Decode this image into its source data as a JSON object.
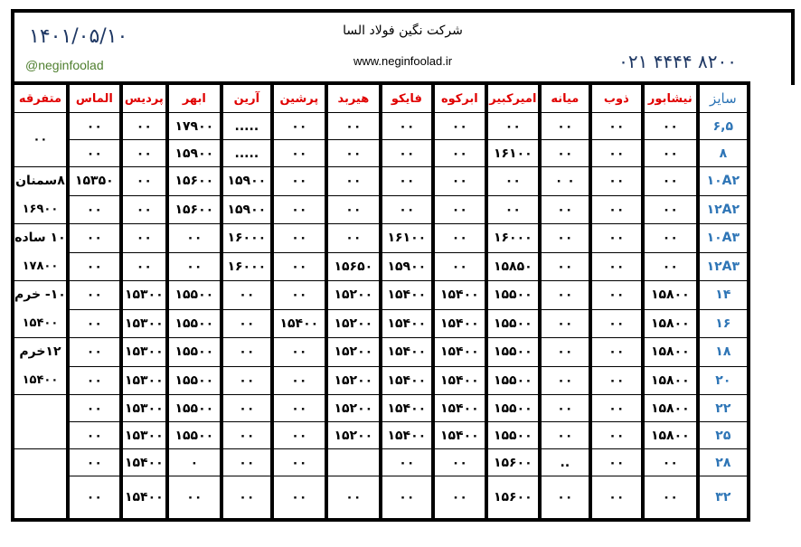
{
  "header": {
    "date": "۱۴۰۱/۰۵/۱۰",
    "handle": "@neginfoolad",
    "company": "شرکت نگین فولاد السا",
    "website": "www.neginfoolad.ir",
    "phone": "۰۲۱ ۴۴۴۴ ۸۲۰۰"
  },
  "colors": {
    "header_text": "#e00000",
    "size_text": "#2e75b6",
    "date_text": "#1f3864",
    "handle_text": "#4f7f2f"
  },
  "columns": [
    "سایز",
    "نیشابور",
    "ذوب",
    "میانه",
    "امیرکبیر",
    "ابرکوه",
    "فایکو",
    "هیربد",
    "پرشین",
    "آرین",
    "ابهر",
    "پردیس",
    "الماس",
    "متفرقه"
  ],
  "rows": [
    {
      "size": "۶,۵",
      "values": [
        "۰۰",
        "۰۰",
        "۰۰",
        "۰۰",
        "۰۰",
        "۰۰",
        "۰۰",
        "۰۰",
        ".....",
        "۱۷۹۰۰",
        "۰۰",
        "۰۰"
      ]
    },
    {
      "size": "۸",
      "values": [
        "۰۰",
        "۰۰",
        "۰۰",
        "۱۶۱۰۰",
        "۰۰",
        "۰۰",
        "۰۰",
        "۰۰",
        ".....",
        "۱۵۹۰۰",
        "۰۰",
        "۰۰"
      ]
    },
    {
      "size": "۱۰A۲",
      "values": [
        "۰۰",
        "۰۰",
        "۰ ۰",
        "۰۰",
        "۰۰",
        "۰۰",
        "۰۰",
        "۰۰",
        "۱۵۹۰۰",
        "۱۵۶۰۰",
        "۰۰",
        "۱۵۳۵۰"
      ]
    },
    {
      "size": "۱۲A۲",
      "values": [
        "۰۰",
        "۰۰",
        "۰۰",
        "۰۰",
        "۰۰",
        "۰۰",
        "۰۰",
        "۰۰",
        "۱۵۹۰۰",
        "۱۵۶۰۰",
        "۰۰",
        "۰۰"
      ]
    },
    {
      "size": "۱۰A۳",
      "values": [
        "۰۰",
        "۰۰",
        "۰۰",
        "۱۶۰۰۰",
        "۰۰",
        "۱۶۱۰۰",
        "۰۰",
        "۰۰",
        "۱۶۰۰۰",
        "۰۰",
        "۰۰",
        "۰۰"
      ]
    },
    {
      "size": "۱۲A۳",
      "values": [
        "۰۰",
        "۰۰",
        "۰۰",
        "۱۵۸۵۰",
        "۰۰",
        "۱۵۹۰۰",
        "۱۵۶۵۰",
        "۰۰",
        "۱۶۰۰۰",
        "۰۰",
        "۰۰",
        "۰۰"
      ]
    },
    {
      "size": "۱۴",
      "values": [
        "۱۵۸۰۰",
        "۰۰",
        "۰۰",
        "۱۵۵۰۰",
        "۱۵۴۰۰",
        "۱۵۴۰۰",
        "۱۵۲۰۰",
        "۰۰",
        "۰۰",
        "۱۵۵۰۰",
        "۱۵۳۰۰",
        "۰۰"
      ]
    },
    {
      "size": "۱۶",
      "values": [
        "۱۵۸۰۰",
        "۰۰",
        "۰۰",
        "۱۵۵۰۰",
        "۱۵۴۰۰",
        "۱۵۴۰۰",
        "۱۵۲۰۰",
        "۱۵۴۰۰",
        "۰۰",
        "۱۵۵۰۰",
        "۱۵۳۰۰",
        "۰۰"
      ]
    },
    {
      "size": "۱۸",
      "values": [
        "۱۵۸۰۰",
        "۰۰",
        "۰۰",
        "۱۵۵۰۰",
        "۱۵۴۰۰",
        "۱۵۴۰۰",
        "۱۵۲۰۰",
        "۰۰",
        "۰۰",
        "۱۵۵۰۰",
        "۱۵۳۰۰",
        "۰۰"
      ]
    },
    {
      "size": "۲۰",
      "values": [
        "۱۵۸۰۰",
        "۰۰",
        "۰۰",
        "۱۵۵۰۰",
        "۱۵۴۰۰",
        "۱۵۴۰۰",
        "۱۵۲۰۰",
        "۰۰",
        "۰۰",
        "۱۵۵۰۰",
        "۱۵۳۰۰",
        "۰۰"
      ]
    },
    {
      "size": "۲۲",
      "values": [
        "۱۵۸۰۰",
        "۰۰",
        "۰۰",
        "۱۵۵۰۰",
        "۱۵۴۰۰",
        "۱۵۴۰۰",
        "۱۵۲۰۰",
        "۰۰",
        "۰۰",
        "۱۵۵۰۰",
        "۱۵۳۰۰",
        "۰۰"
      ]
    },
    {
      "size": "۲۵",
      "values": [
        "۱۵۸۰۰",
        "۰۰",
        "۰۰",
        "۱۵۵۰۰",
        "۱۵۴۰۰",
        "۱۵۴۰۰",
        "۱۵۲۰۰",
        "۰۰",
        "۰۰",
        "۱۵۵۰۰",
        "۱۵۳۰۰",
        "۰۰"
      ]
    },
    {
      "size": "۲۸",
      "values": [
        "۰۰",
        "۰۰",
        "..",
        "۱۵۶۰۰",
        "۰۰",
        "۰۰",
        "",
        "۰۰",
        "۰۰",
        "۰",
        "۱۵۴۰۰",
        "۰۰"
      ]
    },
    {
      "size": "۳۲",
      "values": [
        "۰۰",
        "۰۰",
        "۰۰",
        "۱۵۶۰۰",
        "۰۰",
        "۰۰",
        "۰۰",
        "۰۰",
        "۰۰",
        "۰۰",
        "۱۵۴۰۰",
        "۰۰"
      ]
    }
  ],
  "misc": [
    {
      "lines": [
        "۰۰"
      ]
    },
    {
      "lines": [
        "۸سمنان",
        "۱۶۹۰۰"
      ]
    },
    {
      "lines": [
        "۱۰ ساده",
        "۱۷۸۰۰"
      ]
    },
    {
      "lines": [
        "۱۰- خرم",
        "۱۵۴۰۰"
      ]
    },
    {
      "lines": [
        "۱۲خرم",
        "۱۵۴۰۰"
      ]
    },
    {
      "lines": []
    },
    {
      "lines": []
    }
  ]
}
